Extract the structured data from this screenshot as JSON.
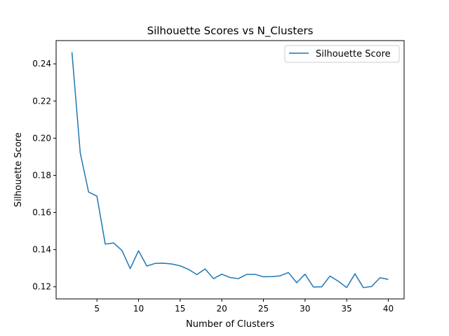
{
  "chart_data": {
    "type": "line",
    "title": "Silhouette Scores vs N_Clusters",
    "xlabel": "Number of Clusters",
    "ylabel": "Silhouette Score",
    "xlim": [
      0.1,
      41.9
    ],
    "ylim": [
      0.1135,
      0.2525
    ],
    "xticks": [
      5,
      10,
      15,
      20,
      25,
      30,
      35,
      40
    ],
    "yticks": [
      0.12,
      0.14,
      0.16,
      0.18,
      0.2,
      0.22,
      0.24
    ],
    "ytick_labels": [
      "0.12",
      "0.14",
      "0.16",
      "0.18",
      "0.20",
      "0.22",
      "0.24"
    ],
    "grid": false,
    "legend_position": "top-right",
    "series": [
      {
        "name": "Silhouette Score",
        "color": "#1f77b4",
        "x": [
          2,
          3,
          4,
          5,
          6,
          7,
          8,
          9,
          10,
          11,
          12,
          13,
          14,
          15,
          16,
          17,
          18,
          19,
          20,
          21,
          22,
          23,
          24,
          25,
          26,
          27,
          28,
          29,
          30,
          31,
          32,
          33,
          34,
          35,
          36,
          37,
          38,
          39,
          40
        ],
        "y": [
          0.2462,
          0.192,
          0.171,
          0.1688,
          0.143,
          0.1436,
          0.1396,
          0.1298,
          0.1394,
          0.1312,
          0.1326,
          0.1327,
          0.1323,
          0.1313,
          0.1294,
          0.1266,
          0.1296,
          0.1244,
          0.1268,
          0.125,
          0.1244,
          0.1267,
          0.1267,
          0.1254,
          0.1255,
          0.1259,
          0.1277,
          0.1222,
          0.1268,
          0.1199,
          0.12,
          0.1258,
          0.123,
          0.1196,
          0.127,
          0.1196,
          0.1202,
          0.1249,
          0.124
        ]
      }
    ]
  }
}
